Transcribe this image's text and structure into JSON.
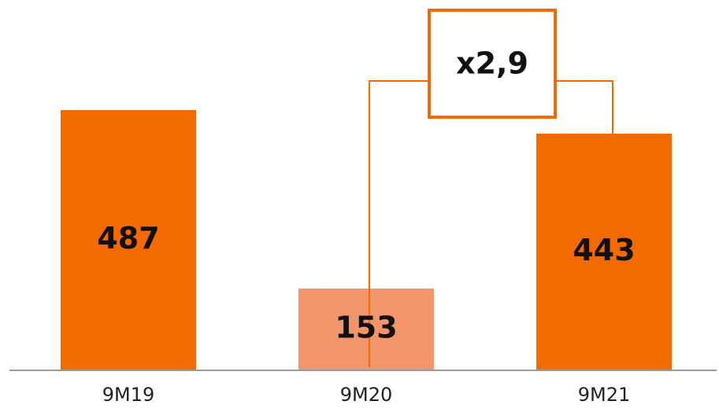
{
  "chart_data": {
    "type": "bar",
    "title": "",
    "xlabel": "",
    "ylabel": "",
    "categories": [
      "9M19",
      "9M20",
      "9M21"
    ],
    "values": [
      487,
      153,
      443
    ],
    "value_labels": [
      "487",
      "153",
      "443"
    ],
    "ylim": [
      0,
      550
    ],
    "grid": false,
    "bar_colors": [
      "#F26A00",
      "#F2956A",
      "#F26A00"
    ],
    "annotation": {
      "text": "x2,9",
      "from_category": "9M20",
      "to_category": "9M21",
      "color": "#F26A00"
    }
  }
}
